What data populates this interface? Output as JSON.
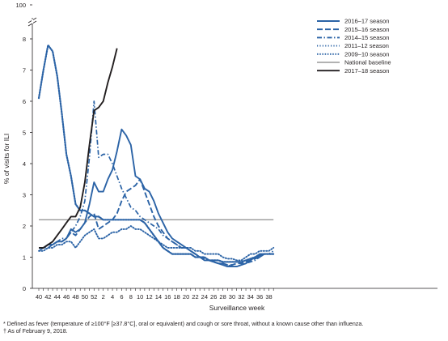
{
  "chart_data": {
    "type": "line",
    "ylabel": "% of visits for ILI",
    "xlabel": "Surveillance week",
    "y_axis_break": true,
    "y_ticks": [
      "0",
      "1",
      "2",
      "3",
      "4",
      "5",
      "6",
      "7",
      "8",
      "100"
    ],
    "ylim": [
      0,
      8
    ],
    "x_ticks": [
      "40",
      "42",
      "44",
      "46",
      "48",
      "50",
      "52",
      "2",
      "4",
      "6",
      "8",
      "10",
      "12",
      "14",
      "16",
      "18",
      "20",
      "22",
      "24",
      "26",
      "28",
      "30",
      "32",
      "34",
      "36",
      "38"
    ],
    "x_categories": [
      40,
      41,
      42,
      43,
      44,
      45,
      46,
      47,
      48,
      49,
      50,
      51,
      52,
      1,
      2,
      3,
      4,
      5,
      6,
      7,
      8,
      9,
      10,
      11,
      12,
      13,
      14,
      15,
      16,
      17,
      18,
      19,
      20,
      21,
      22,
      23,
      24,
      25,
      26,
      27,
      28,
      29,
      30,
      31,
      32,
      33,
      34,
      35,
      36,
      37,
      38,
      39
    ],
    "legend_placement": "top-right",
    "series": [
      {
        "name": "2016–17 season",
        "color": "#2b63a6",
        "style": "solid",
        "values": [
          1.3,
          1.3,
          1.4,
          1.4,
          1.5,
          1.5,
          1.6,
          1.9,
          1.8,
          1.9,
          2.1,
          2.7,
          3.4,
          3.1,
          3.1,
          3.5,
          3.8,
          4.4,
          5.1,
          4.9,
          4.6,
          3.6,
          3.5,
          3.2,
          3.1,
          2.8,
          2.4,
          2.1,
          1.8,
          1.6,
          1.5,
          1.4,
          1.3,
          1.2,
          1.1,
          1.0,
          0.9,
          0.9,
          0.85,
          0.8,
          0.75,
          0.7,
          0.7,
          0.7,
          0.75,
          0.8,
          0.9,
          1.0,
          1.1,
          1.1,
          1.1,
          1.1
        ]
      },
      {
        "name": "2015–16 season",
        "color": "#2b63a6",
        "style": "dashed",
        "values": [
          1.3,
          1.3,
          1.4,
          1.4,
          1.5,
          1.5,
          1.6,
          1.8,
          1.7,
          1.9,
          2.1,
          2.3,
          2.4,
          1.9,
          2.0,
          2.1,
          2.2,
          2.4,
          2.8,
          3.1,
          3.2,
          3.3,
          3.5,
          3.1,
          2.7,
          2.3,
          2.0,
          1.8,
          1.6,
          1.5,
          1.4,
          1.3,
          1.3,
          1.2,
          1.1,
          1.0,
          0.95,
          0.9,
          0.85,
          0.8,
          0.8,
          0.75,
          0.75,
          0.8,
          0.8,
          0.85,
          0.9,
          0.95,
          1.0,
          1.1,
          1.1,
          1.1
        ]
      },
      {
        "name": "2014–15 season",
        "color": "#2b63a6",
        "style": "dashdot",
        "values": [
          1.2,
          1.3,
          1.3,
          1.4,
          1.5,
          1.6,
          1.6,
          1.8,
          2.0,
          2.3,
          2.8,
          4.2,
          6.0,
          4.2,
          4.3,
          4.3,
          4.0,
          3.6,
          3.2,
          2.9,
          2.6,
          2.5,
          2.3,
          2.2,
          2.1,
          2.0,
          1.9,
          1.7,
          1.6,
          1.5,
          1.4,
          1.3,
          1.3,
          1.2,
          1.1,
          1.0,
          0.95,
          0.9,
          0.85,
          0.8,
          0.8,
          0.75,
          0.7,
          0.7,
          0.75,
          0.8,
          0.85,
          0.9,
          1.0,
          1.1,
          1.1,
          1.2
        ]
      },
      {
        "name": "2011–12 season",
        "color": "#2b63a6",
        "style": "dotted",
        "values": [
          1.2,
          1.2,
          1.3,
          1.3,
          1.4,
          1.4,
          1.5,
          1.5,
          1.3,
          1.5,
          1.7,
          1.8,
          1.9,
          1.6,
          1.6,
          1.7,
          1.8,
          1.8,
          1.9,
          1.9,
          2.0,
          1.9,
          1.9,
          1.8,
          1.7,
          1.6,
          1.5,
          1.4,
          1.3,
          1.3,
          1.3,
          1.3,
          1.3,
          1.3,
          1.2,
          1.2,
          1.1,
          1.1,
          1.1,
          1.1,
          1.0,
          0.95,
          0.95,
          0.9,
          0.9,
          1.0,
          1.1,
          1.1,
          1.2,
          1.2,
          1.2,
          1.3
        ]
      },
      {
        "name": "2009–10 season",
        "color": "#2b63a6",
        "style": "densely-dotted",
        "values": [
          6.1,
          7.0,
          7.8,
          7.6,
          6.8,
          5.6,
          4.3,
          3.6,
          2.7,
          2.5,
          2.5,
          2.4,
          2.3,
          2.3,
          2.2,
          2.2,
          2.2,
          2.2,
          2.2,
          2.2,
          2.2,
          2.2,
          2.2,
          2.1,
          1.9,
          1.7,
          1.5,
          1.3,
          1.2,
          1.1,
          1.1,
          1.1,
          1.1,
          1.1,
          1.0,
          1.0,
          1.0,
          0.9,
          0.9,
          0.9,
          0.85,
          0.85,
          0.85,
          0.85,
          0.85,
          0.9,
          0.95,
          1.0,
          1.05,
          1.1,
          1.1,
          1.1
        ]
      },
      {
        "name": "National baseline",
        "color": "#999999",
        "style": "solid",
        "values": [
          2.2,
          2.2,
          2.2,
          2.2,
          2.2,
          2.2,
          2.2,
          2.2,
          2.2,
          2.2,
          2.2,
          2.2,
          2.2,
          2.2,
          2.2,
          2.2,
          2.2,
          2.2,
          2.2,
          2.2,
          2.2,
          2.2,
          2.2,
          2.2,
          2.2,
          2.2,
          2.2,
          2.2,
          2.2,
          2.2,
          2.2,
          2.2,
          2.2,
          2.2,
          2.2,
          2.2,
          2.2,
          2.2,
          2.2,
          2.2,
          2.2,
          2.2,
          2.2,
          2.2,
          2.2,
          2.2,
          2.2,
          2.2,
          2.2,
          2.2,
          2.2,
          2.2
        ]
      },
      {
        "name": "2017–18 season",
        "color": "#231f20",
        "style": "solid",
        "values": [
          1.3,
          1.3,
          1.4,
          1.5,
          1.7,
          1.9,
          2.1,
          2.3,
          2.3,
          2.6,
          3.4,
          4.6,
          5.7,
          5.8,
          6.0,
          6.6,
          7.1,
          7.7
        ]
      }
    ]
  },
  "footnotes": [
    "* Defined as fever (temperature of ≥100°F [≥37.8°C], oral or equivalent) and cough or sore throat, without a known cause other than influenza.",
    "† As of February 9, 2018."
  ]
}
